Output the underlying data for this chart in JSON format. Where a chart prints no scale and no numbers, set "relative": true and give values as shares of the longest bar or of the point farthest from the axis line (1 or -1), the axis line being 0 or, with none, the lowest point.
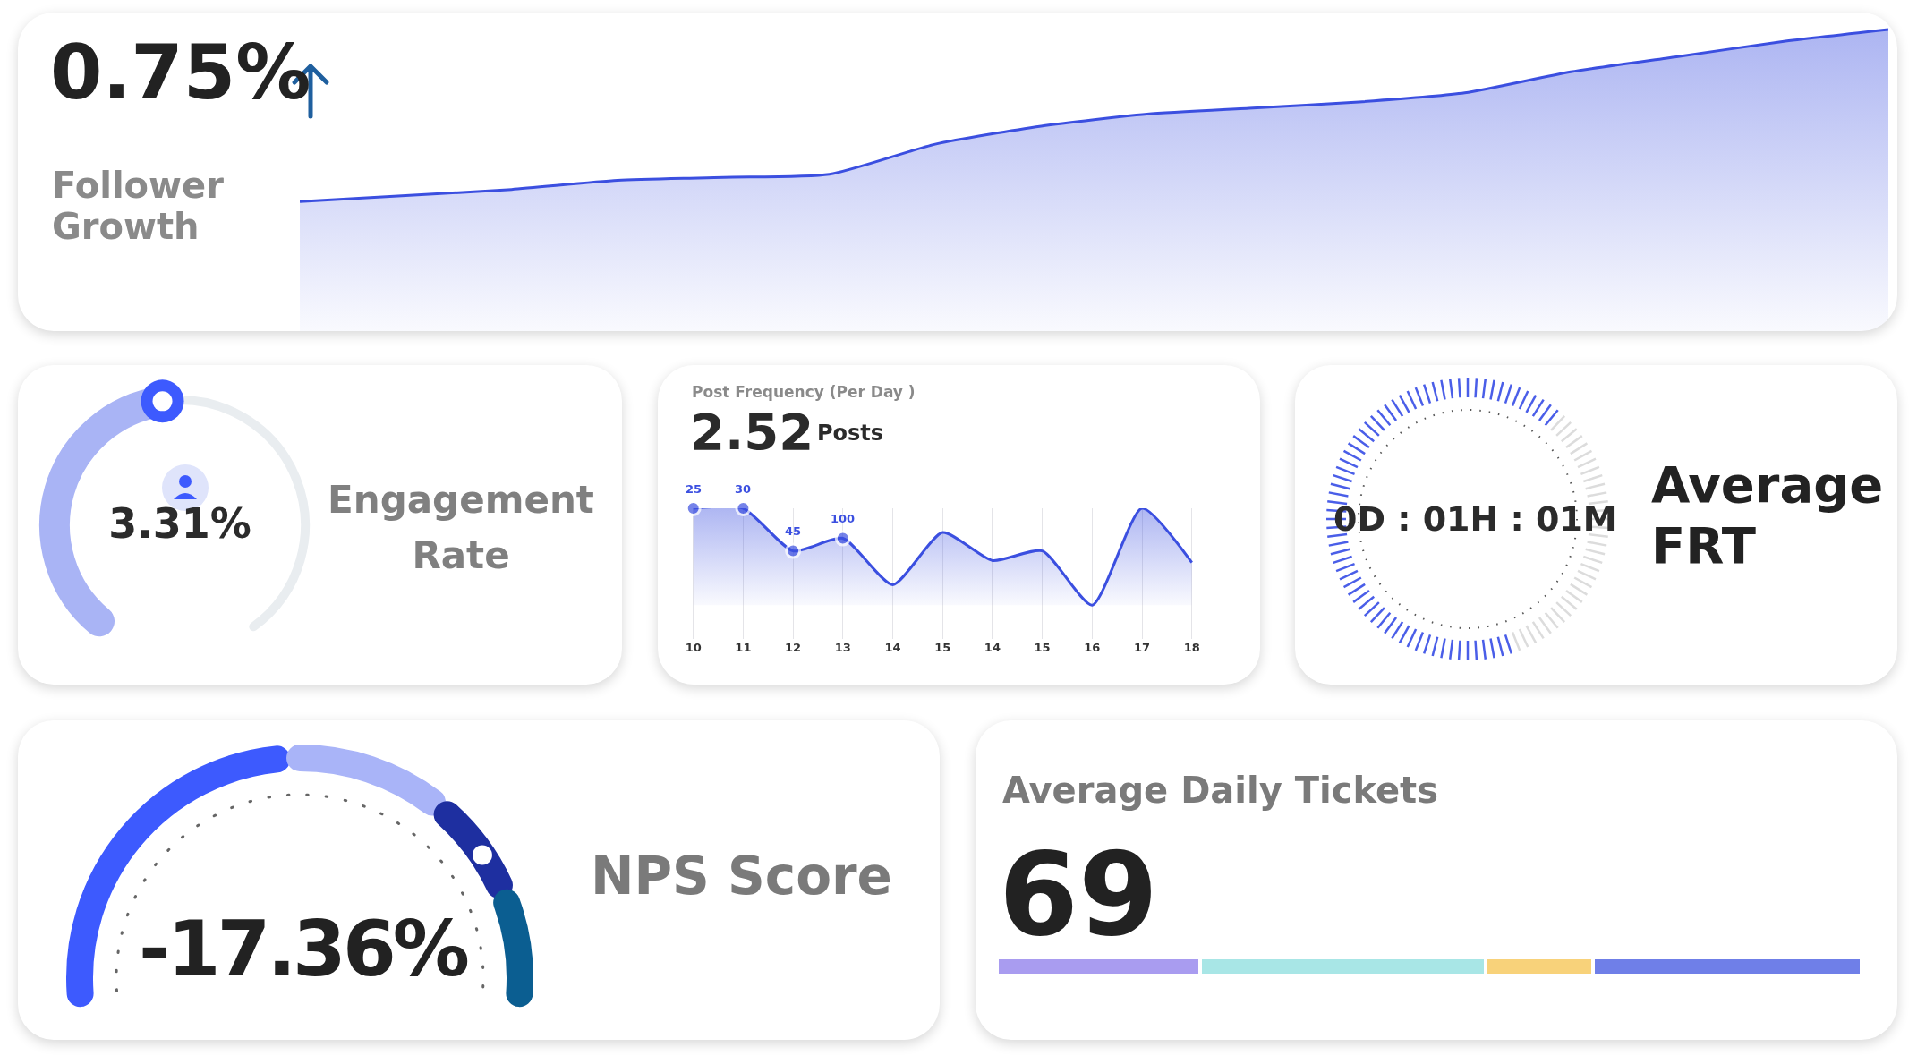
{
  "chart_data": [
    {
      "type": "area",
      "title": "0.75%",
      "subtitle": "Follower Growth",
      "relative": true,
      "color": "#3b4fe0",
      "categories": [
        null,
        null,
        null,
        null,
        null,
        null,
        null,
        null,
        null,
        null,
        null,
        null,
        null,
        null,
        null,
        null
      ],
      "values": [
        0.43,
        0.45,
        0.47,
        0.5,
        0.51,
        0.52,
        0.62,
        0.68,
        0.72,
        0.74,
        0.76,
        0.79,
        0.86,
        0.91,
        0.96,
        1.0
      ]
    },
    {
      "type": "other",
      "title": "Engagement Rate",
      "annotations": [
        "3.31%"
      ]
    },
    {
      "type": "area",
      "title": "Post Frequency (Per Day )",
      "subtitle": "2.52",
      "relative": true,
      "grid": "x",
      "color": "#3b4fe0",
      "categories": [
        "10",
        "11",
        "12",
        "13",
        "14",
        "15",
        "14",
        "15",
        "16",
        "17",
        "18"
      ],
      "values": [
        1.0,
        1.0,
        0.56,
        0.69,
        0.21,
        0.75,
        0.46,
        0.56,
        0.0,
        1.0,
        0.44
      ],
      "annotations": [
        "Posts",
        "25",
        "30",
        "45",
        "100"
      ]
    },
    {
      "type": "other",
      "title": "Average FRT",
      "annotations": [
        "0D : 01H : 01M"
      ]
    },
    {
      "type": "other",
      "title": "NPS Score",
      "annotations": [
        "-17.36%"
      ]
    },
    {
      "type": "bar",
      "title": "Average Daily Tickets",
      "annotations": [
        "69"
      ],
      "orientation": "horizontal",
      "stacked": true,
      "relative": true,
      "categories": [
        null
      ],
      "series": [
        {
          "color": "#a99cf0",
          "values": [
            0.235
          ]
        },
        {
          "color": "#a8e6e6",
          "values": [
            0.33
          ]
        },
        {
          "color": "#f8d27a",
          "values": [
            0.124
          ]
        },
        {
          "color": "#6f7fe8",
          "values": [
            0.311
          ]
        }
      ]
    }
  ]
}
